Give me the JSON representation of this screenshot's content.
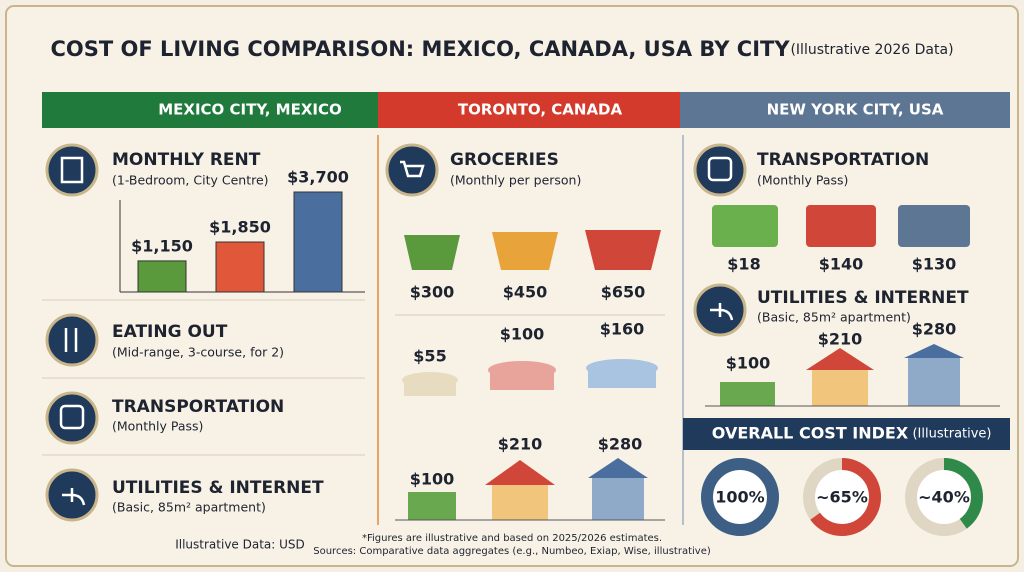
{
  "title": "COST OF LIVING COMPARISON: MEXICO, CANADA, USA BY CITY",
  "subtitle": "(Illustrative 2026 Data)",
  "columns": [
    "MEXICO CITY, MEXICO",
    "TORONTO, CANADA",
    "NEW YORK CITY, USA"
  ],
  "rent": {
    "title": "MONTHLY RENT",
    "note": "(1-Bedroom, City Centre)",
    "values": [
      1150,
      1850,
      3700
    ],
    "value_labels": [
      "$1,150",
      "$1,850",
      "$3,700"
    ],
    "colors": [
      "#5a9a3c",
      "#e0573a",
      "#4a6f9e"
    ]
  },
  "eating_out": {
    "title": "EATING OUT",
    "note": "(Mid-range, 3-course, for 2)",
    "prices": [
      "$55",
      "$100",
      "$160"
    ]
  },
  "left_transport": {
    "title": "TRANSPORTATION",
    "note": "(Monthly Pass)"
  },
  "left_utilities": {
    "title": "UTILITIES & INTERNET",
    "note": "(Basic, 85m² apartment)"
  },
  "groceries": {
    "title": "GROCERIES",
    "note": "(Monthly per person)",
    "prices": [
      "$300",
      "$450",
      "$650"
    ]
  },
  "middle_utilities": {
    "prices": [
      "$100",
      "$210",
      "$280"
    ]
  },
  "right_transport": {
    "title": "TRANSPORTATION",
    "note": "(Monthly Pass)",
    "prices": [
      "$18",
      "$140",
      "$130"
    ]
  },
  "right_utilities": {
    "title": "UTILITIES & INTERNET",
    "note": "(Basic, 85m² apartment)",
    "prices": [
      "$100",
      "$210",
      "$280"
    ]
  },
  "cost_index": {
    "title": "OVERALL COST INDEX",
    "note": "(Illustrative)",
    "values": [
      100,
      65,
      40
    ],
    "value_labels": [
      "100%",
      "~65%",
      "~40%"
    ],
    "colors": [
      "#3d5f86",
      "#d0473a",
      "#2f8a4a"
    ]
  },
  "footer": {
    "left": "Illustrative Data: USD",
    "notes": [
      "*Figures are illustrative and based on 2025/2026 estimates.",
      "Sources: Comparative data aggregates (e.g., Numbeo, Exiap, Wise, illustrative)"
    ]
  }
}
